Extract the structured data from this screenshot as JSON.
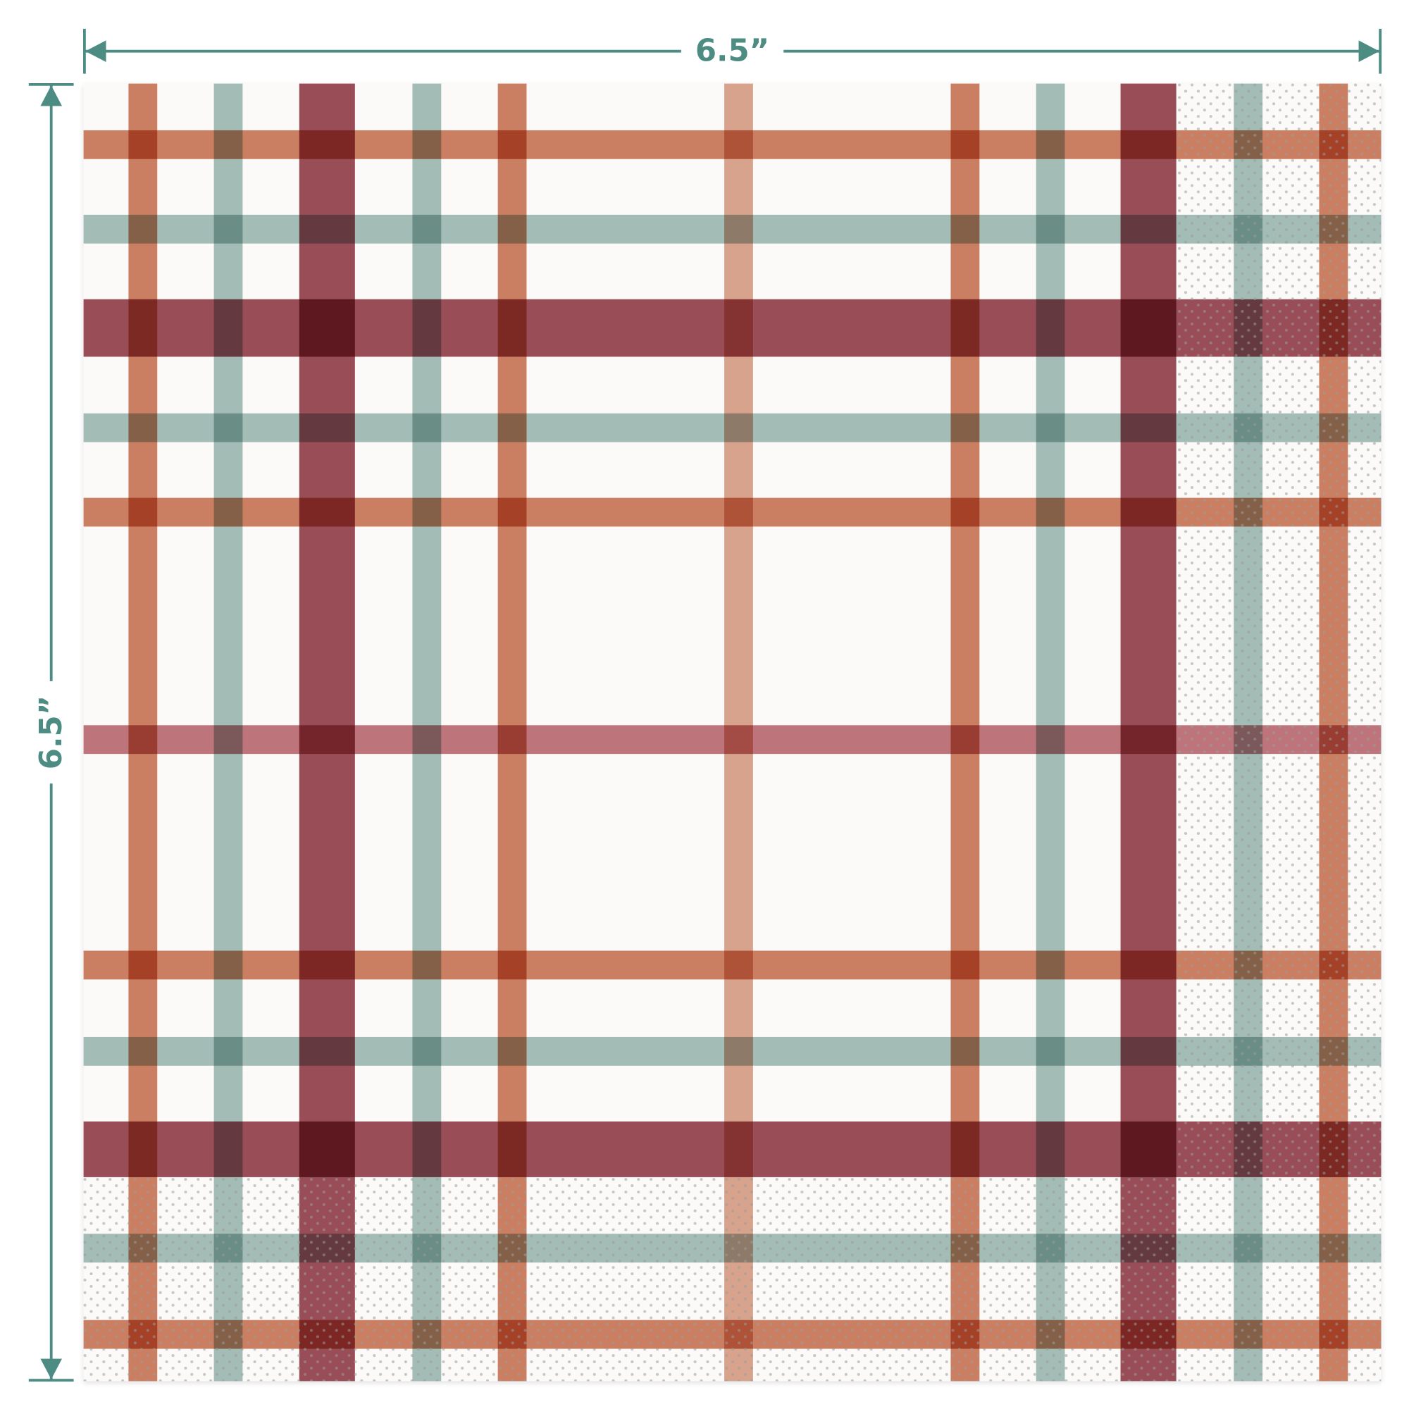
{
  "dimensions": {
    "width": "6.5”",
    "height": "6.5”"
  }
}
